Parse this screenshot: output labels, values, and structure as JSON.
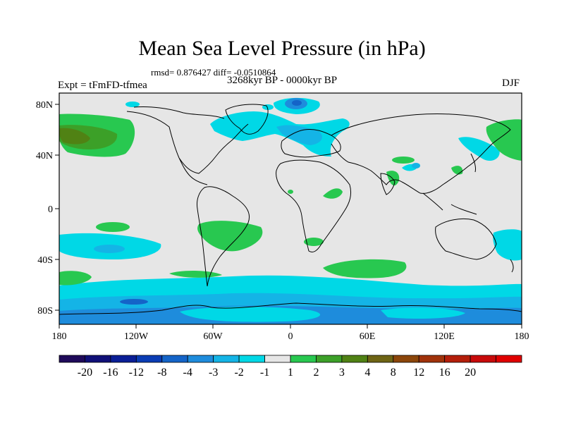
{
  "title": "Mean Sea Level Pressure (in hPa)",
  "stats": "rmsd= 0.876427 diff= -0.0510864",
  "period": "3268kyr BP - 0000kyr BP",
  "experiment": "Expt = tFmFD-tfmea",
  "season": "DJF",
  "map": {
    "lat_ticks": [
      "80N",
      "40N",
      "0",
      "40S",
      "80S"
    ],
    "lon_ticks": [
      "180",
      "120W",
      "60W",
      "0",
      "60E",
      "120E",
      "180"
    ],
    "background_color": "#e6e6e6"
  },
  "colorbar": {
    "colors": [
      "#1f0a5a",
      "#101078",
      "#0a1e96",
      "#0a3cb4",
      "#1464c8",
      "#1e8cdc",
      "#14b4e6",
      "#00d8e6",
      "#e6e6e6",
      "#28c850",
      "#3ca028",
      "#508214",
      "#6e6414",
      "#8c460a",
      "#a0320a",
      "#b41e0a",
      "#c80a0a",
      "#e00000"
    ],
    "labels": [
      "-20",
      "-16",
      "-12",
      "-8",
      "-4",
      "-3",
      "-2",
      "-1",
      "1",
      "2",
      "3",
      "4",
      "8",
      "12",
      "16",
      "20"
    ]
  }
}
